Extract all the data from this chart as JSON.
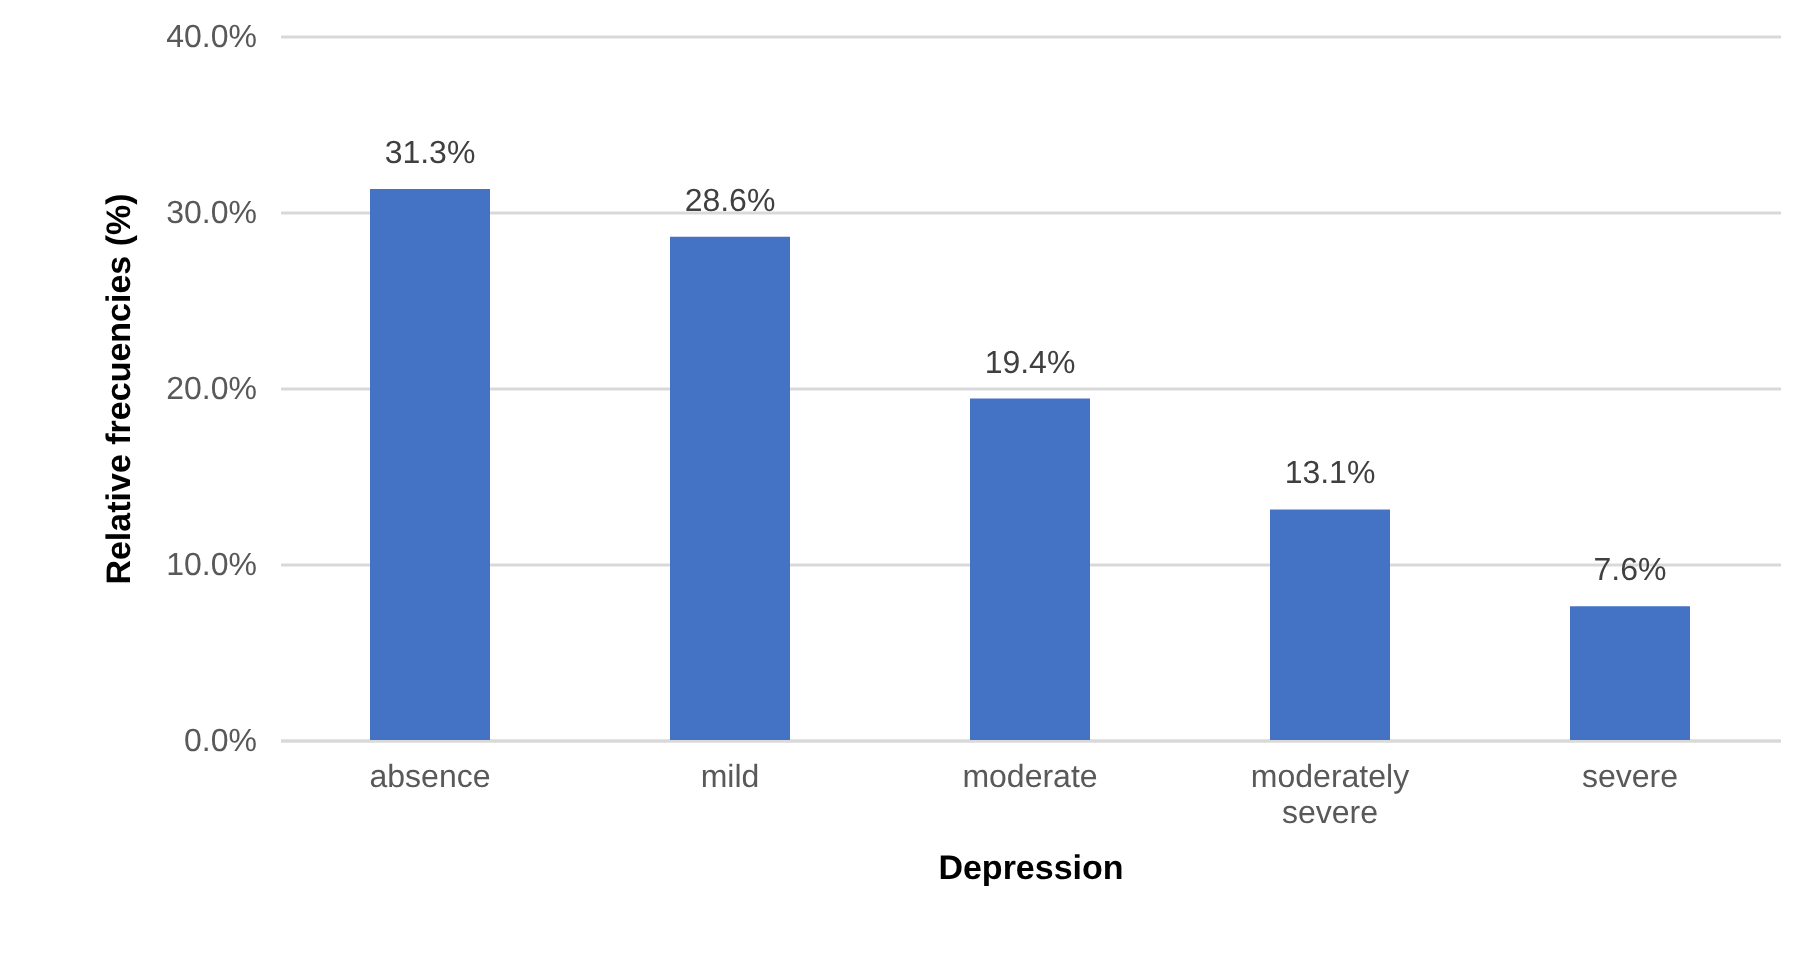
{
  "chart_data": {
    "type": "bar",
    "xlabel": "Depression",
    "ylabel": "Relative frecuencies (%)",
    "categories": [
      "absence",
      "mild",
      "moderate",
      "moderately severe",
      "severe"
    ],
    "values": [
      31.3,
      28.6,
      19.4,
      13.1,
      7.6
    ],
    "value_labels": [
      "31.3%",
      "28.6%",
      "19.4%",
      "13.1%",
      "7.6%"
    ],
    "color": "#4472c4",
    "ylim": [
      0,
      40
    ],
    "yticks": [
      {
        "value": 0,
        "label": "0.0%"
      },
      {
        "value": 10,
        "label": "10.0%"
      },
      {
        "value": 20,
        "label": "20.0%"
      },
      {
        "value": 30,
        "label": "30.0%"
      },
      {
        "value": 40,
        "label": "40.0%"
      }
    ],
    "grid": "y"
  }
}
